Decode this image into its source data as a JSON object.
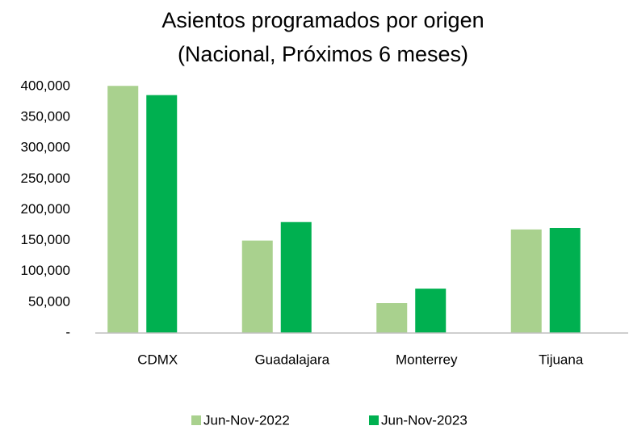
{
  "chart_data": {
    "type": "bar",
    "title": [
      "Asientos programados por origen",
      "(Nacional, Próximos 6 meses)"
    ],
    "categories": [
      "CDMX",
      "Guadalajara",
      "Monterrey",
      "Tijuana"
    ],
    "series": [
      {
        "name": "Jun-Nov-2022",
        "color": "#a9d18e",
        "values": [
          401000,
          150000,
          48500,
          168000
        ]
      },
      {
        "name": "Jun-Nov-2023",
        "color": "#00b050",
        "values": [
          386000,
          180000,
          72000,
          170500
        ]
      }
    ],
    "ylim": [
      0,
      410000
    ],
    "yticks": [
      {
        "value": 0,
        "label": "-"
      },
      {
        "value": 50000,
        "label": "50,000"
      },
      {
        "value": 100000,
        "label": "100,000"
      },
      {
        "value": 150000,
        "label": "150,000"
      },
      {
        "value": 200000,
        "label": "200,000"
      },
      {
        "value": 250000,
        "label": "250,000"
      },
      {
        "value": 300000,
        "label": "300,000"
      },
      {
        "value": 350000,
        "label": "350,000"
      },
      {
        "value": 400000,
        "label": "400,000"
      }
    ],
    "grid": false,
    "legend": "bottom"
  }
}
